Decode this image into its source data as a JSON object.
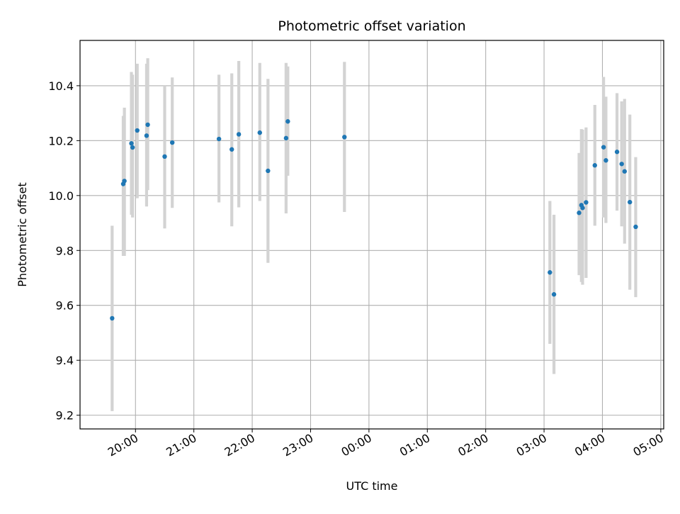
{
  "chart_data": {
    "type": "scatter",
    "title": "Photometric offset variation",
    "xlabel": "UTC time",
    "ylabel": "Photometric offset",
    "x_unit": "UTC time (hours; values after 24 are the next day)",
    "xlim": [
      19.05,
      29.05
    ],
    "ylim": [
      9.15,
      10.565
    ],
    "x_ticks": [
      20,
      21,
      22,
      23,
      24,
      25,
      26,
      27,
      28,
      29
    ],
    "x_tick_labels": [
      "20:00",
      "21:00",
      "22:00",
      "23:00",
      "00:00",
      "01:00",
      "02:00",
      "03:00",
      "04:00",
      "05:00"
    ],
    "y_ticks": [
      9.2,
      9.4,
      9.6,
      9.8,
      10.0,
      10.2,
      10.4
    ],
    "y_tick_labels": [
      "9.2",
      "9.4",
      "9.6",
      "9.8",
      "10.0",
      "10.2",
      "10.4"
    ],
    "grid": true,
    "colors": {
      "points": "#1f77b4",
      "errorbars": "#d3d3d3",
      "grid": "#b0b0b0"
    },
    "series": [
      {
        "points": [
          {
            "x": 19.6,
            "y": 9.553,
            "lo": 9.215,
            "hi": 9.89
          },
          {
            "x": 19.79,
            "y": 10.042,
            "lo": 9.78,
            "hi": 10.29
          },
          {
            "x": 19.81,
            "y": 10.053,
            "lo": 9.78,
            "hi": 10.32
          },
          {
            "x": 19.93,
            "y": 10.19,
            "lo": 9.93,
            "hi": 10.45
          },
          {
            "x": 19.95,
            "y": 10.175,
            "lo": 9.92,
            "hi": 10.44
          },
          {
            "x": 20.03,
            "y": 10.237,
            "lo": 9.99,
            "hi": 10.48
          },
          {
            "x": 20.19,
            "y": 10.218,
            "lo": 9.96,
            "hi": 10.48
          },
          {
            "x": 20.21,
            "y": 10.258,
            "lo": 10.02,
            "hi": 10.5
          },
          {
            "x": 20.5,
            "y": 10.142,
            "lo": 9.88,
            "hi": 10.4
          },
          {
            "x": 20.63,
            "y": 10.193,
            "lo": 9.955,
            "hi": 10.43
          },
          {
            "x": 21.43,
            "y": 10.206,
            "lo": 9.975,
            "hi": 10.44
          },
          {
            "x": 21.65,
            "y": 10.168,
            "lo": 9.888,
            "hi": 10.445
          },
          {
            "x": 21.77,
            "y": 10.223,
            "lo": 9.957,
            "hi": 10.49
          },
          {
            "x": 22.13,
            "y": 10.229,
            "lo": 9.98,
            "hi": 10.483
          },
          {
            "x": 22.27,
            "y": 10.09,
            "lo": 9.755,
            "hi": 10.425
          },
          {
            "x": 22.58,
            "y": 10.209,
            "lo": 9.935,
            "hi": 10.483
          },
          {
            "x": 22.61,
            "y": 10.27,
            "lo": 10.072,
            "hi": 10.47
          },
          {
            "x": 23.58,
            "y": 10.213,
            "lo": 9.94,
            "hi": 10.487
          },
          {
            "x": 27.1,
            "y": 9.72,
            "lo": 9.46,
            "hi": 9.98
          },
          {
            "x": 27.17,
            "y": 9.64,
            "lo": 9.35,
            "hi": 9.93
          },
          {
            "x": 27.6,
            "y": 9.937,
            "lo": 9.71,
            "hi": 10.155
          },
          {
            "x": 27.64,
            "y": 9.965,
            "lo": 9.685,
            "hi": 10.242
          },
          {
            "x": 27.66,
            "y": 9.955,
            "lo": 9.675,
            "hi": 10.24
          },
          {
            "x": 27.72,
            "y": 9.975,
            "lo": 9.7,
            "hi": 10.248
          },
          {
            "x": 27.87,
            "y": 10.11,
            "lo": 9.89,
            "hi": 10.33
          },
          {
            "x": 28.02,
            "y": 10.176,
            "lo": 9.92,
            "hi": 10.432
          },
          {
            "x": 28.06,
            "y": 10.128,
            "lo": 9.9,
            "hi": 10.36
          },
          {
            "x": 28.25,
            "y": 10.159,
            "lo": 9.945,
            "hi": 10.373
          },
          {
            "x": 28.33,
            "y": 10.115,
            "lo": 9.888,
            "hi": 10.343
          },
          {
            "x": 28.38,
            "y": 10.088,
            "lo": 9.825,
            "hi": 10.352
          },
          {
            "x": 28.47,
            "y": 9.976,
            "lo": 9.657,
            "hi": 10.295
          },
          {
            "x": 28.57,
            "y": 9.886,
            "lo": 9.63,
            "hi": 10.14
          }
        ]
      }
    ]
  }
}
